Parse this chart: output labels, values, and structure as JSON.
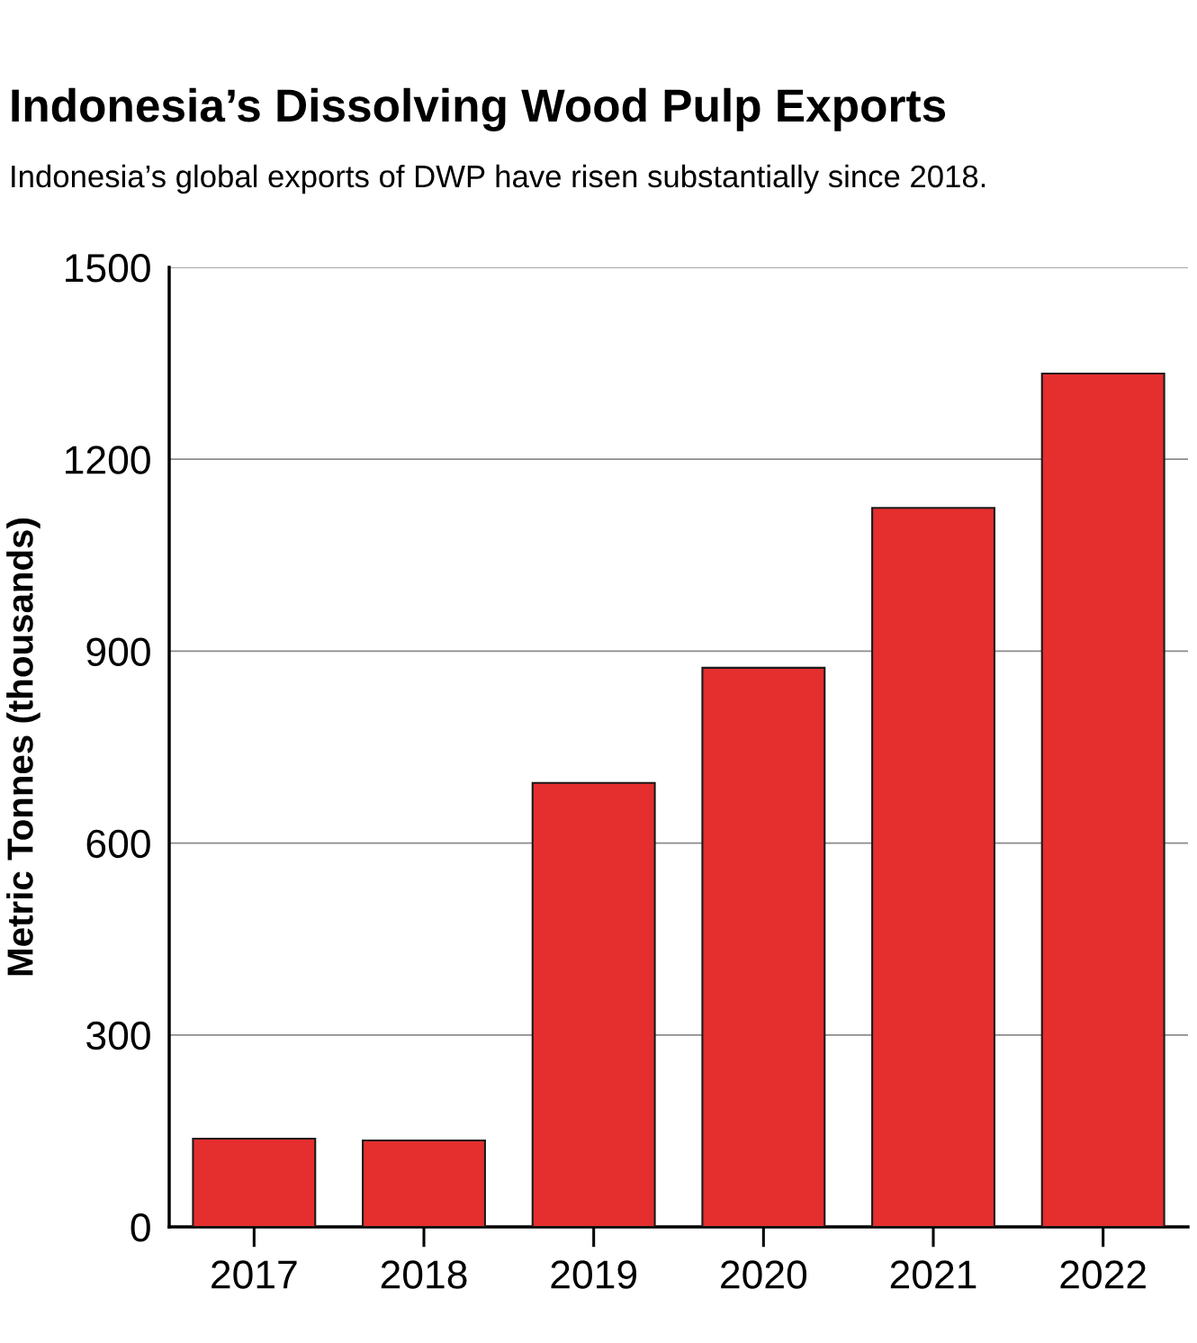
{
  "chart_data": {
    "type": "bar",
    "title": "Indonesia’s Dissolving Wood Pulp Exports",
    "subtitle": "Indonesia’s global exports of DWP have risen substantially since 2018.",
    "ylabel": "Metric Tonnes (thousands)",
    "categories": [
      "2017",
      "2018",
      "2019",
      "2020",
      "2021",
      "2022"
    ],
    "values": [
      138,
      135,
      694,
      874,
      1124,
      1334
    ],
    "color": "#e52e2e",
    "ylim": [
      0,
      1500
    ],
    "yticks": [
      0,
      300,
      600,
      900,
      1200,
      1500
    ],
    "grid": "y",
    "legend": false
  }
}
